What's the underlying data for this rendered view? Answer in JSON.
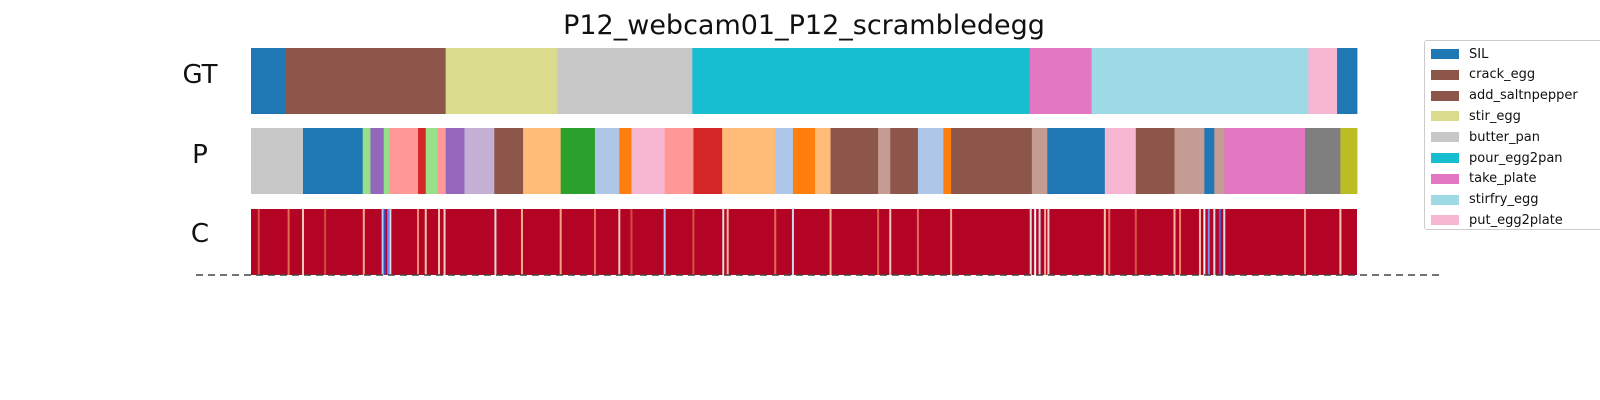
{
  "chart_data": {
    "type": "segmentation",
    "title": "P12_webcam01_P12_scrambledegg",
    "rows": [
      {
        "label": "GT",
        "kind": "categorical",
        "segments": [
          {
            "start": 0.0,
            "end": 3.1,
            "class": "SIL"
          },
          {
            "start": 3.1,
            "end": 17.6,
            "class": "crack_egg"
          },
          {
            "start": 17.6,
            "end": 27.7,
            "class": "stir_egg"
          },
          {
            "start": 27.7,
            "end": 39.9,
            "class": "butter_pan"
          },
          {
            "start": 39.9,
            "end": 70.4,
            "class": "pour_egg2pan"
          },
          {
            "start": 70.4,
            "end": 76.0,
            "class": "take_plate"
          },
          {
            "start": 76.0,
            "end": 95.6,
            "class": "stirfry_egg"
          },
          {
            "start": 95.6,
            "end": 98.2,
            "class": "put_egg2plate"
          },
          {
            "start": 98.2,
            "end": 100.0,
            "class": "SIL"
          }
        ]
      },
      {
        "label": "P",
        "kind": "categorical",
        "segments": [
          {
            "start": 0.0,
            "end": 4.7,
            "color": "#c7c7c7"
          },
          {
            "start": 4.7,
            "end": 10.1,
            "color": "#1f77b4"
          },
          {
            "start": 10.1,
            "end": 10.8,
            "color": "#98df8a"
          },
          {
            "start": 10.8,
            "end": 12.0,
            "color": "#9467bd"
          },
          {
            "start": 12.0,
            "end": 12.5,
            "color": "#98df8a"
          },
          {
            "start": 12.5,
            "end": 15.1,
            "color": "#ff9896"
          },
          {
            "start": 15.1,
            "end": 15.8,
            "color": "#d62728"
          },
          {
            "start": 15.8,
            "end": 16.9,
            "color": "#98df8a"
          },
          {
            "start": 16.9,
            "end": 17.6,
            "color": "#ff9896"
          },
          {
            "start": 17.6,
            "end": 19.3,
            "color": "#9467bd"
          },
          {
            "start": 19.3,
            "end": 22.0,
            "color": "#c5b0d5"
          },
          {
            "start": 22.0,
            "end": 24.6,
            "color": "#8c564b"
          },
          {
            "start": 24.6,
            "end": 28.0,
            "color": "#ffbb78"
          },
          {
            "start": 28.0,
            "end": 31.1,
            "color": "#2ca02c"
          },
          {
            "start": 31.1,
            "end": 33.3,
            "color": "#aec7e8"
          },
          {
            "start": 33.3,
            "end": 34.4,
            "color": "#ff7f0e"
          },
          {
            "start": 34.4,
            "end": 37.4,
            "color": "#f7b6d2"
          },
          {
            "start": 37.4,
            "end": 40.0,
            "color": "#ff9896"
          },
          {
            "start": 40.0,
            "end": 42.6,
            "color": "#d62728"
          },
          {
            "start": 42.6,
            "end": 47.4,
            "color": "#ffbb78"
          },
          {
            "start": 47.4,
            "end": 49.0,
            "color": "#aec7e8"
          },
          {
            "start": 49.0,
            "end": 51.0,
            "color": "#ff7f0e"
          },
          {
            "start": 51.0,
            "end": 52.4,
            "color": "#ffbb78"
          },
          {
            "start": 52.4,
            "end": 56.7,
            "color": "#8c564b"
          },
          {
            "start": 56.7,
            "end": 57.8,
            "color": "#c49c94"
          },
          {
            "start": 57.8,
            "end": 60.3,
            "color": "#8c564b"
          },
          {
            "start": 60.3,
            "end": 62.6,
            "color": "#aec7e8"
          },
          {
            "start": 62.6,
            "end": 63.3,
            "color": "#ff7f0e"
          },
          {
            "start": 63.3,
            "end": 70.6,
            "color": "#8c564b"
          },
          {
            "start": 70.6,
            "end": 72.0,
            "color": "#c49c94"
          },
          {
            "start": 72.0,
            "end": 77.2,
            "color": "#1f77b4"
          },
          {
            "start": 77.2,
            "end": 80.0,
            "color": "#f7b6d2"
          },
          {
            "start": 80.0,
            "end": 83.5,
            "color": "#8c564b"
          },
          {
            "start": 83.5,
            "end": 86.2,
            "color": "#c49c94"
          },
          {
            "start": 86.2,
            "end": 87.1,
            "color": "#1f77b4"
          },
          {
            "start": 87.1,
            "end": 88.0,
            "color": "#c49c94"
          },
          {
            "start": 88.0,
            "end": 95.3,
            "color": "#e377c2"
          },
          {
            "start": 95.3,
            "end": 98.5,
            "color": "#7f7f7f"
          },
          {
            "start": 98.5,
            "end": 100.0,
            "color": "#bcbd22"
          }
        ]
      },
      {
        "label": "C",
        "kind": "confidence",
        "base_color": "#b40426",
        "lines": [
          {
            "pos": 0.7,
            "color": "#d75445"
          },
          {
            "pos": 3.4,
            "color": "#e36c55"
          },
          {
            "pos": 4.7,
            "color": "#f2cbb7"
          },
          {
            "pos": 6.7,
            "color": "#d24b40"
          },
          {
            "pos": 10.2,
            "color": "#f7a889"
          },
          {
            "pos": 11.9,
            "color": "#b5cdfa"
          },
          {
            "pos": 12.1,
            "color": "#3b4cc0"
          },
          {
            "pos": 12.4,
            "color": "#6788ee"
          },
          {
            "pos": 12.6,
            "color": "#d8dce2"
          },
          {
            "pos": 15.1,
            "color": "#f08a6c"
          },
          {
            "pos": 15.8,
            "color": "#f5c0a7"
          },
          {
            "pos": 17.0,
            "color": "#f4c5ad"
          },
          {
            "pos": 17.5,
            "color": "#edd1c2"
          },
          {
            "pos": 22.1,
            "color": "#e0dbd8"
          },
          {
            "pos": 24.5,
            "color": "#f7a98b"
          },
          {
            "pos": 28.0,
            "color": "#f6a283"
          },
          {
            "pos": 31.1,
            "color": "#e46e56"
          },
          {
            "pos": 33.3,
            "color": "#f2cab5"
          },
          {
            "pos": 34.4,
            "color": "#d24b40"
          },
          {
            "pos": 37.4,
            "color": "#b3cdfb"
          },
          {
            "pos": 40.0,
            "color": "#d65244"
          },
          {
            "pos": 42.7,
            "color": "#dddcdc"
          },
          {
            "pos": 43.1,
            "color": "#f7b89c"
          },
          {
            "pos": 47.4,
            "color": "#e26952"
          },
          {
            "pos": 49.0,
            "color": "#cad8ef"
          },
          {
            "pos": 52.4,
            "color": "#f7ac8e"
          },
          {
            "pos": 56.7,
            "color": "#dc5d4a"
          },
          {
            "pos": 57.8,
            "color": "#f4c5ad"
          },
          {
            "pos": 60.3,
            "color": "#e36b54"
          },
          {
            "pos": 63.3,
            "color": "#f6a385"
          },
          {
            "pos": 70.5,
            "color": "#dddcdc"
          },
          {
            "pos": 70.9,
            "color": "#f1f1f1"
          },
          {
            "pos": 71.3,
            "color": "#cfdaea"
          },
          {
            "pos": 71.8,
            "color": "#f7a889"
          },
          {
            "pos": 72.1,
            "color": "#e9d5cb"
          },
          {
            "pos": 77.2,
            "color": "#f5c4ac"
          },
          {
            "pos": 77.6,
            "color": "#e7745b"
          },
          {
            "pos": 80.0,
            "color": "#d75445"
          },
          {
            "pos": 83.5,
            "color": "#f7b79b"
          },
          {
            "pos": 84.0,
            "color": "#ec7f63"
          },
          {
            "pos": 85.8,
            "color": "#f5c0a7"
          },
          {
            "pos": 86.2,
            "color": "#f1f1f1"
          },
          {
            "pos": 86.6,
            "color": "#6f92f3"
          },
          {
            "pos": 87.1,
            "color": "#d8dce2"
          },
          {
            "pos": 87.6,
            "color": "#4a63d3"
          },
          {
            "pos": 88.0,
            "color": "#dbdcde"
          },
          {
            "pos": 95.3,
            "color": "#f29274"
          },
          {
            "pos": 98.5,
            "color": "#f4c5ad"
          }
        ]
      }
    ],
    "legend": {
      "position": "right",
      "entries": [
        {
          "label": "SIL",
          "color": "#1f77b4"
        },
        {
          "label": "crack_egg",
          "color": "#8c564b"
        },
        {
          "label": "add_saltnpepper",
          "color": "#8c564b"
        },
        {
          "label": "stir_egg",
          "color": "#dbdb8d"
        },
        {
          "label": "butter_pan",
          "color": "#c7c7c7"
        },
        {
          "label": "pour_egg2pan",
          "color": "#17becf"
        },
        {
          "label": "take_plate",
          "color": "#e377c2"
        },
        {
          "label": "stirfry_egg",
          "color": "#9edae5"
        },
        {
          "label": "put_egg2plate",
          "color": "#f7b6d2"
        }
      ]
    }
  }
}
